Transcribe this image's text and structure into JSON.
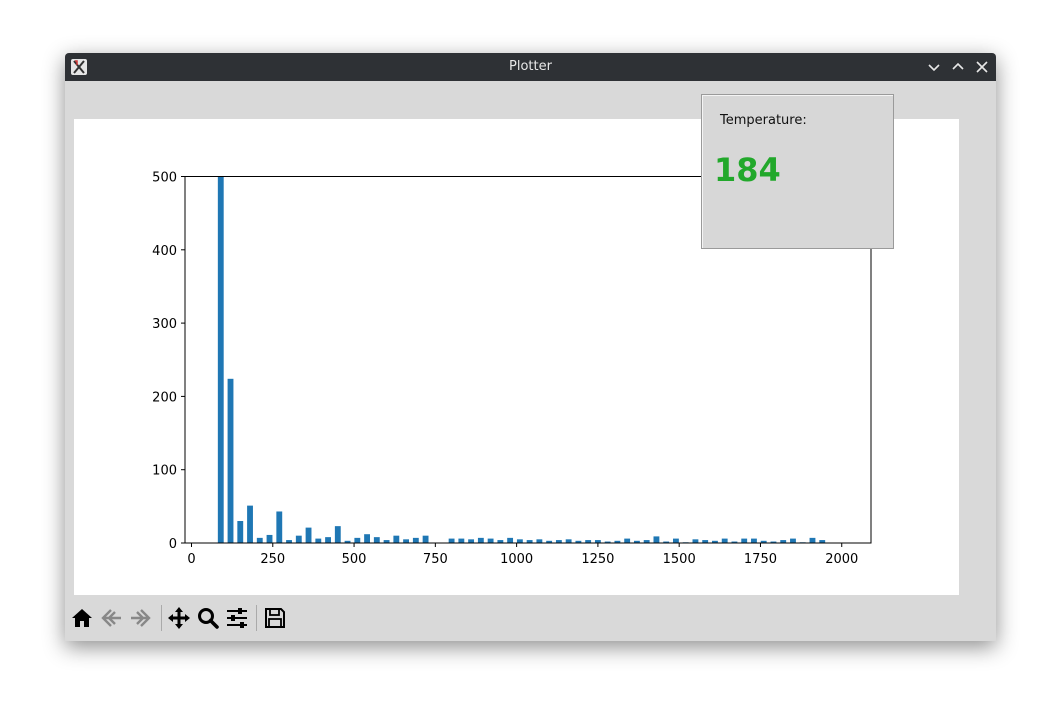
{
  "window": {
    "title": "Plotter"
  },
  "temperature": {
    "label": "Temperature:",
    "value": "184",
    "value_color": "#22a82b"
  },
  "toolbar": {
    "icons": [
      "home-icon",
      "back-icon",
      "forward-icon",
      "pan-icon",
      "zoom-icon",
      "configure-subplots-icon",
      "save-icon"
    ]
  },
  "chart_data": {
    "type": "bar",
    "title": "",
    "xlabel": "",
    "ylabel": "",
    "xlim": [
      -20,
      2090
    ],
    "ylim": [
      0,
      500
    ],
    "xticks": [
      0,
      250,
      500,
      750,
      1000,
      1250,
      1500,
      1750,
      2000
    ],
    "yticks": [
      0,
      100,
      200,
      300,
      400,
      500
    ],
    "bar_color": "#1f77b4",
    "bar_width": 18,
    "x": [
      90,
      120,
      150,
      180,
      210,
      240,
      270,
      300,
      330,
      360,
      390,
      420,
      450,
      480,
      510,
      540,
      570,
      600,
      630,
      660,
      690,
      720,
      750,
      800,
      830,
      860,
      890,
      920,
      950,
      980,
      1010,
      1040,
      1070,
      1100,
      1130,
      1160,
      1190,
      1220,
      1250,
      1280,
      1310,
      1340,
      1370,
      1400,
      1430,
      1460,
      1490,
      1520,
      1550,
      1580,
      1610,
      1640,
      1670,
      1700,
      1730,
      1760,
      1790,
      1820,
      1850,
      1880,
      1910,
      1940,
      1970,
      2000
    ],
    "values": [
      500,
      224,
      30,
      51,
      7,
      11,
      43,
      4,
      10,
      21,
      6,
      8,
      23,
      3,
      7,
      12,
      8,
      4,
      10,
      5,
      7,
      10,
      0,
      6,
      6,
      5,
      7,
      6,
      4,
      7,
      5,
      4,
      5,
      3,
      4,
      5,
      3,
      4,
      4,
      2,
      3,
      6,
      3,
      4,
      9,
      2,
      6,
      1,
      5,
      4,
      3,
      6,
      2,
      6,
      6,
      3,
      2,
      4,
      6,
      1,
      7,
      4,
      0,
      0
    ]
  }
}
